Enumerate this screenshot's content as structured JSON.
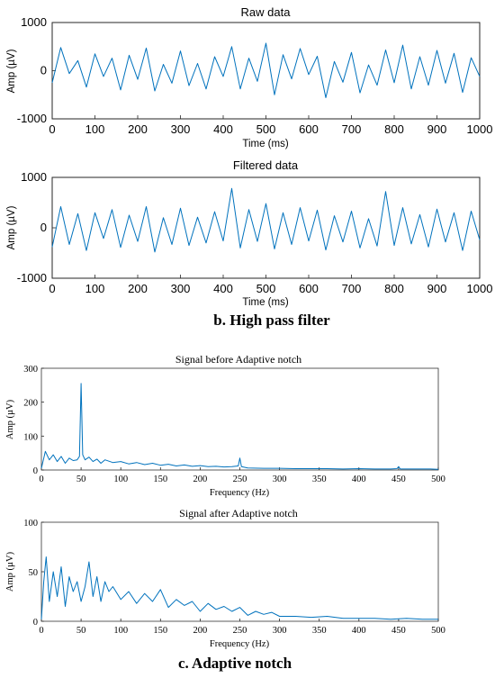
{
  "captions": {
    "high_pass": "b. High pass filter",
    "adaptive_notch": "c. Adaptive notch"
  },
  "chart_data": [
    {
      "type": "line",
      "title": "Raw data",
      "xlabel": "Time (ms)",
      "ylabel": "Amp (µV)",
      "xlim": [
        0,
        1000
      ],
      "ylim": [
        -1000,
        1000
      ],
      "xticks": [
        "0",
        "100",
        "200",
        "300",
        "400",
        "500",
        "600",
        "700",
        "800",
        "900",
        "1000"
      ],
      "yticks": [
        "1000",
        "0",
        "-1000"
      ],
      "series": [
        {
          "x": [
            0,
            20,
            40,
            60,
            80,
            100,
            120,
            140,
            160,
            180,
            200,
            220,
            240,
            260,
            280,
            300,
            320,
            340,
            360,
            380,
            400,
            420,
            440,
            460,
            480,
            500,
            520,
            540,
            560,
            580,
            600,
            620,
            640,
            660,
            680,
            700,
            720,
            740,
            760,
            780,
            800,
            820,
            840,
            860,
            880,
            900,
            920,
            940,
            960,
            980,
            1000
          ],
          "values": [
            -250,
            480,
            -60,
            210,
            -340,
            350,
            -120,
            260,
            -400,
            320,
            -180,
            470,
            -420,
            130,
            -260,
            410,
            -310,
            150,
            -380,
            290,
            -120,
            500,
            -380,
            260,
            -220,
            570,
            -500,
            330,
            -170,
            460,
            -80,
            300,
            -560,
            190,
            -240,
            380,
            -460,
            120,
            -300,
            430,
            -250,
            530,
            -380,
            290,
            -300,
            420,
            -260,
            360,
            -450,
            270,
            -120
          ],
          "color": "#0072BD"
        }
      ]
    },
    {
      "type": "line",
      "title": "Filtered data",
      "xlabel": "Time (ms)",
      "ylabel": "Amp (µV)",
      "xlim": [
        0,
        1000
      ],
      "ylim": [
        -1000,
        1000
      ],
      "xticks": [
        "0",
        "100",
        "200",
        "300",
        "400",
        "500",
        "600",
        "700",
        "800",
        "900",
        "1000"
      ],
      "yticks": [
        "1000",
        "0",
        "-1000"
      ],
      "series": [
        {
          "x": [
            0,
            20,
            40,
            60,
            80,
            100,
            120,
            140,
            160,
            180,
            200,
            220,
            240,
            260,
            280,
            300,
            320,
            340,
            360,
            380,
            400,
            420,
            440,
            460,
            480,
            500,
            520,
            540,
            560,
            580,
            600,
            620,
            640,
            660,
            680,
            700,
            720,
            740,
            760,
            780,
            800,
            820,
            840,
            860,
            880,
            900,
            920,
            940,
            960,
            980,
            1000
          ],
          "values": [
            -380,
            420,
            -330,
            280,
            -450,
            300,
            -210,
            360,
            -390,
            250,
            -270,
            420,
            -480,
            200,
            -330,
            390,
            -350,
            210,
            -300,
            320,
            -260,
            780,
            -400,
            360,
            -270,
            480,
            -420,
            300,
            -330,
            400,
            -260,
            350,
            -440,
            240,
            -280,
            330,
            -400,
            180,
            -360,
            720,
            -350,
            400,
            -320,
            260,
            -380,
            370,
            -280,
            300,
            -450,
            330,
            -240
          ],
          "color": "#0072BD"
        }
      ]
    },
    {
      "type": "line",
      "title": "Signal  before Adaptive notch",
      "xlabel": "Frequency  (Hz)",
      "ylabel": "Amp  (µV)",
      "xlim": [
        0,
        500
      ],
      "ylim": [
        0,
        300
      ],
      "xticks": [
        "0",
        "50",
        "100",
        "150",
        "200",
        "250",
        "300",
        "350",
        "400",
        "450",
        "500"
      ],
      "yticks": [
        "300",
        "200",
        "100",
        "0"
      ],
      "series": [
        {
          "x": [
            0,
            5,
            10,
            15,
            20,
            25,
            30,
            35,
            40,
            45,
            48,
            50,
            52,
            55,
            60,
            65,
            70,
            75,
            80,
            90,
            100,
            110,
            120,
            130,
            140,
            150,
            160,
            170,
            180,
            190,
            200,
            210,
            220,
            230,
            240,
            248,
            250,
            252,
            260,
            280,
            300,
            320,
            340,
            360,
            380,
            400,
            420,
            440,
            448,
            450,
            452,
            470,
            490,
            500
          ],
          "values": [
            5,
            55,
            30,
            45,
            25,
            40,
            20,
            35,
            28,
            30,
            40,
            255,
            45,
            30,
            38,
            25,
            32,
            20,
            30,
            22,
            25,
            18,
            22,
            16,
            20,
            14,
            17,
            12,
            15,
            11,
            13,
            10,
            11,
            9,
            10,
            12,
            35,
            10,
            6,
            5,
            5,
            4,
            4,
            4,
            3,
            4,
            3,
            3,
            4,
            10,
            3,
            3,
            3,
            2
          ],
          "color": "#2E86C1"
        }
      ]
    },
    {
      "type": "line",
      "title": "Signal  after Adaptive notch",
      "xlabel": "Frequency  (Hz)",
      "ylabel": "Amp  (µV)",
      "xlim": [
        0,
        500
      ],
      "ylim": [
        0,
        100
      ],
      "xticks": [
        "0",
        "50",
        "100",
        "150",
        "200",
        "250",
        "300",
        "350",
        "400",
        "450",
        "500"
      ],
      "yticks": [
        "100",
        "50",
        "0"
      ],
      "series": [
        {
          "x": [
            0,
            3,
            6,
            10,
            15,
            20,
            25,
            30,
            35,
            40,
            45,
            50,
            55,
            60,
            65,
            70,
            75,
            80,
            85,
            90,
            100,
            110,
            120,
            130,
            140,
            150,
            160,
            170,
            180,
            190,
            200,
            210,
            220,
            230,
            240,
            250,
            260,
            270,
            280,
            290,
            300,
            320,
            340,
            360,
            380,
            400,
            420,
            440,
            460,
            480,
            500
          ],
          "values": [
            2,
            40,
            65,
            20,
            50,
            25,
            55,
            15,
            45,
            30,
            40,
            20,
            35,
            60,
            25,
            45,
            20,
            40,
            30,
            35,
            22,
            30,
            18,
            28,
            20,
            32,
            14,
            22,
            16,
            20,
            10,
            18,
            12,
            15,
            10,
            14,
            6,
            10,
            7,
            9,
            5,
            5,
            4,
            5,
            3,
            3,
            3,
            2,
            3,
            2,
            2
          ],
          "color": "#2E86C1"
        }
      ]
    }
  ]
}
